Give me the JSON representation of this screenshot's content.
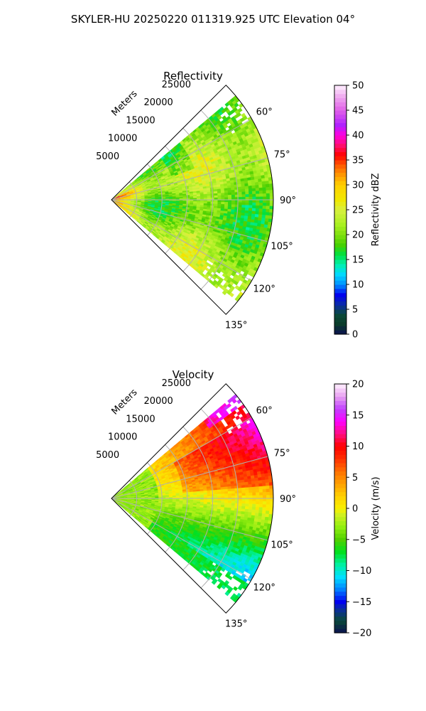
{
  "figure": {
    "title": "SKYLER-HU  20250220  011319.925 UTC Elevation 04°"
  },
  "chart_data": [
    {
      "type": "heatmap",
      "title": "Reflectivity",
      "projection": "polar-sector",
      "radial_label": "Meters",
      "radial_ticks": [
        5000,
        10000,
        15000,
        20000,
        25000
      ],
      "radial_tick_labels": [
        "5000",
        "10000",
        "15000",
        "20000",
        "25000"
      ],
      "rmax": 32000,
      "theta_range": [
        45,
        135
      ],
      "theta_ticks": [
        60,
        75,
        90,
        105,
        120,
        135
      ],
      "theta_tick_labels": [
        "60°",
        "75°",
        "90°",
        "105°",
        "120°",
        "135°"
      ],
      "grid": true,
      "colorbar": {
        "label": "Reflectivity dBZ",
        "range": [
          0,
          50
        ],
        "ticks": [
          0,
          5,
          10,
          15,
          20,
          25,
          30,
          35,
          40,
          45,
          50
        ],
        "tick_labels": [
          "0",
          "5",
          "10",
          "15",
          "20",
          "25",
          "30",
          "35",
          "40",
          "45",
          "50"
        ],
        "stops": [
          [
            0,
            "#0b1050"
          ],
          [
            2,
            "#0b3b2a"
          ],
          [
            4,
            "#0a4a38"
          ],
          [
            6,
            "#0a2aa8"
          ],
          [
            8,
            "#0000f0"
          ],
          [
            10,
            "#0090ff"
          ],
          [
            12,
            "#00d8ff"
          ],
          [
            14,
            "#00f0b0"
          ],
          [
            16,
            "#00e040"
          ],
          [
            18,
            "#48d000"
          ],
          [
            20,
            "#80e010"
          ],
          [
            22,
            "#a8f020"
          ],
          [
            25,
            "#d8f040"
          ],
          [
            27,
            "#f0e800"
          ],
          [
            30,
            "#ffd000"
          ],
          [
            32,
            "#ff9a00"
          ],
          [
            34,
            "#ff5a00"
          ],
          [
            36,
            "#ff0000"
          ],
          [
            38,
            "#ff1070"
          ],
          [
            40,
            "#ff00e0"
          ],
          [
            42,
            "#b020ff"
          ],
          [
            45,
            "#e060e8"
          ],
          [
            48,
            "#f0b0f0"
          ],
          [
            50,
            "#fff0ff"
          ]
        ]
      },
      "field_summary": "mostly 18-27 dBZ, up to ~36 dBZ near the radar"
    },
    {
      "type": "heatmap",
      "title": "Velocity",
      "projection": "polar-sector",
      "radial_label": "Meters",
      "radial_ticks": [
        5000,
        10000,
        15000,
        20000,
        25000
      ],
      "radial_tick_labels": [
        "5000",
        "10000",
        "15000",
        "20000",
        "25000"
      ],
      "rmax": 32000,
      "theta_range": [
        45,
        135
      ],
      "theta_ticks": [
        60,
        75,
        90,
        105,
        120,
        135
      ],
      "theta_tick_labels": [
        "60°",
        "75°",
        "90°",
        "105°",
        "120°",
        "135°"
      ],
      "grid": true,
      "colorbar": {
        "label": "Velocity (m/s)",
        "range": [
          -20,
          20
        ],
        "ticks": [
          -20,
          -15,
          -10,
          -5,
          0,
          5,
          10,
          15,
          20
        ],
        "tick_labels": [
          "−20",
          "−15",
          "−10",
          "−5",
          "0",
          "5",
          "10",
          "15",
          "20"
        ],
        "stops": [
          [
            -20,
            "#0b1050"
          ],
          [
            -18,
            "#0a4a38"
          ],
          [
            -16,
            "#0a2aa8"
          ],
          [
            -15,
            "#0000f0"
          ],
          [
            -13,
            "#0080ff"
          ],
          [
            -11,
            "#00e0ff"
          ],
          [
            -9,
            "#00f0a0"
          ],
          [
            -7,
            "#00e020"
          ],
          [
            -5,
            "#50d000"
          ],
          [
            -3,
            "#90ee10"
          ],
          [
            -1,
            "#d0f020"
          ],
          [
            0,
            "#f8f000"
          ],
          [
            2,
            "#ffd000"
          ],
          [
            4,
            "#ffa000"
          ],
          [
            6,
            "#ff7000"
          ],
          [
            8,
            "#ff3000"
          ],
          [
            10,
            "#ff0000"
          ],
          [
            12,
            "#ff1080"
          ],
          [
            14,
            "#ff00ff"
          ],
          [
            16,
            "#c040ff"
          ],
          [
            18,
            "#e8a0f0"
          ],
          [
            20,
            "#fff0ff"
          ]
        ]
      },
      "field_summary": "-8 m/s south edge to +12 m/s northeast"
    }
  ]
}
